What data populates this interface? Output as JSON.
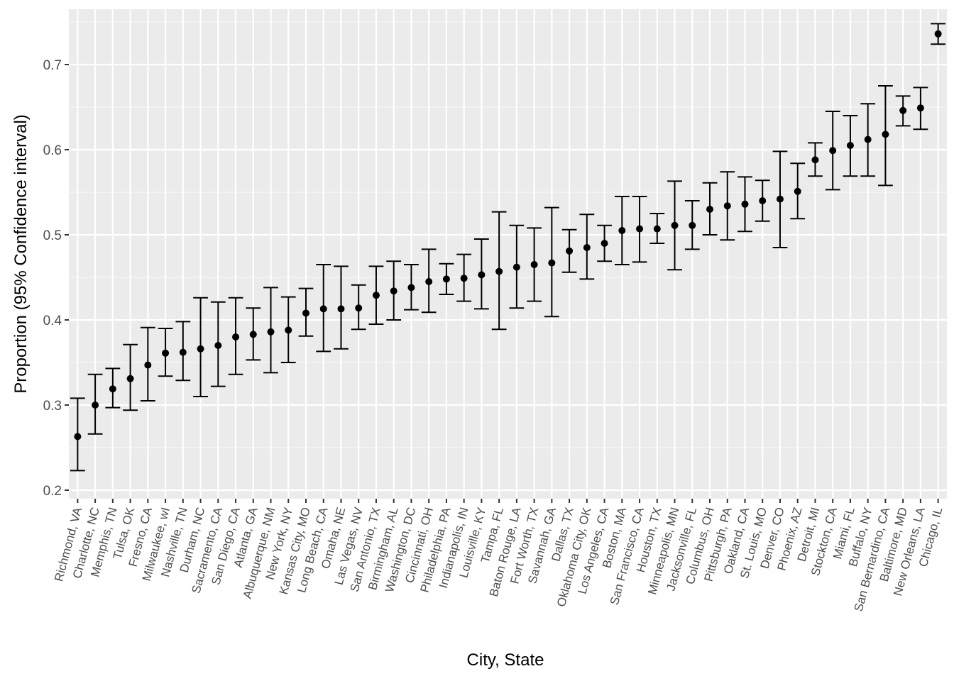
{
  "chart_data": {
    "type": "scatter",
    "xlabel": "City, State",
    "ylabel": "Proportion (95% Confidence interval)",
    "ylim": [
      0.19,
      0.765
    ],
    "y_ticks": [
      0.2,
      0.3,
      0.4,
      0.5,
      0.6,
      0.7
    ],
    "y_tick_labels": [
      "0.2",
      "0.3",
      "0.4",
      "0.5",
      "0.6",
      "0.7"
    ],
    "grid": true,
    "categories": [
      "Richmond, VA",
      "Charlotte, NC",
      "Memphis, TN",
      "Tulsa, OK",
      "Fresno, CA",
      "Milwaukee, wI",
      "Nashville, TN",
      "Durham, NC",
      "Sacramento, CA",
      "San Diego, CA",
      "Atlanta, GA",
      "Albuquerque, NM",
      "New York, NY",
      "Kansas City, MO",
      "Long Beach, CA",
      "Omaha, NE",
      "Las Vegas, NV",
      "San Antonio, TX",
      "Birmingham, AL",
      "Washington, DC",
      "Cincinnati, OH",
      "Philadelphia, PA",
      "Indianapolis, IN",
      "Louisville, KY",
      "Tampa, FL",
      "Baton Rouge, LA",
      "Fort Worth, TX",
      "Savannah, GA",
      "Dallas, TX",
      "Oklahoma City, OK",
      "Los Angeles, CA",
      "Boston, MA",
      "San Francisco, CA",
      "Houston, TX",
      "Minneapolis, MN",
      "Jacksonville, FL",
      "Columbus, OH",
      "Pittsburgh, PA",
      "Oakland, CA",
      "St. Louis, MO",
      "Denver, CO",
      "Phoenix, AZ",
      "Detroit, MI",
      "Stockton, CA",
      "Miami, FL",
      "Buffalo, NY",
      "San Bernardino, CA",
      "Baltimore, MD",
      "New Orleans, LA",
      "Chicago, IL"
    ],
    "estimate": [
      0.263,
      0.3,
      0.319,
      0.331,
      0.347,
      0.361,
      0.362,
      0.366,
      0.37,
      0.38,
      0.383,
      0.386,
      0.388,
      0.408,
      0.413,
      0.413,
      0.414,
      0.429,
      0.434,
      0.438,
      0.445,
      0.448,
      0.449,
      0.453,
      0.457,
      0.462,
      0.465,
      0.467,
      0.481,
      0.485,
      0.49,
      0.505,
      0.507,
      0.507,
      0.511,
      0.511,
      0.53,
      0.534,
      0.536,
      0.54,
      0.542,
      0.551,
      0.588,
      0.599,
      0.605,
      0.612,
      0.618,
      0.646,
      0.649,
      0.736
    ],
    "lower": [
      0.223,
      0.266,
      0.297,
      0.294,
      0.305,
      0.334,
      0.329,
      0.31,
      0.322,
      0.336,
      0.353,
      0.338,
      0.35,
      0.381,
      0.363,
      0.366,
      0.389,
      0.395,
      0.4,
      0.412,
      0.409,
      0.43,
      0.422,
      0.413,
      0.389,
      0.414,
      0.422,
      0.404,
      0.456,
      0.448,
      0.469,
      0.465,
      0.468,
      0.49,
      0.459,
      0.483,
      0.5,
      0.494,
      0.504,
      0.516,
      0.485,
      0.519,
      0.569,
      0.553,
      0.569,
      0.569,
      0.558,
      0.628,
      0.624,
      0.724
    ],
    "upper": [
      0.308,
      0.336,
      0.343,
      0.371,
      0.391,
      0.39,
      0.398,
      0.426,
      0.421,
      0.426,
      0.414,
      0.438,
      0.427,
      0.437,
      0.465,
      0.463,
      0.441,
      0.463,
      0.469,
      0.465,
      0.483,
      0.466,
      0.477,
      0.495,
      0.527,
      0.511,
      0.508,
      0.532,
      0.506,
      0.524,
      0.511,
      0.545,
      0.545,
      0.525,
      0.563,
      0.54,
      0.561,
      0.574,
      0.568,
      0.564,
      0.598,
      0.584,
      0.608,
      0.645,
      0.64,
      0.654,
      0.675,
      0.663,
      0.673,
      0.748
    ],
    "colors": {
      "panel_background": "#ebebeb",
      "grid_major": "#ffffff",
      "points": "#000000",
      "error_bars": "#000000",
      "tick_labels": "#4d4d4d"
    }
  }
}
